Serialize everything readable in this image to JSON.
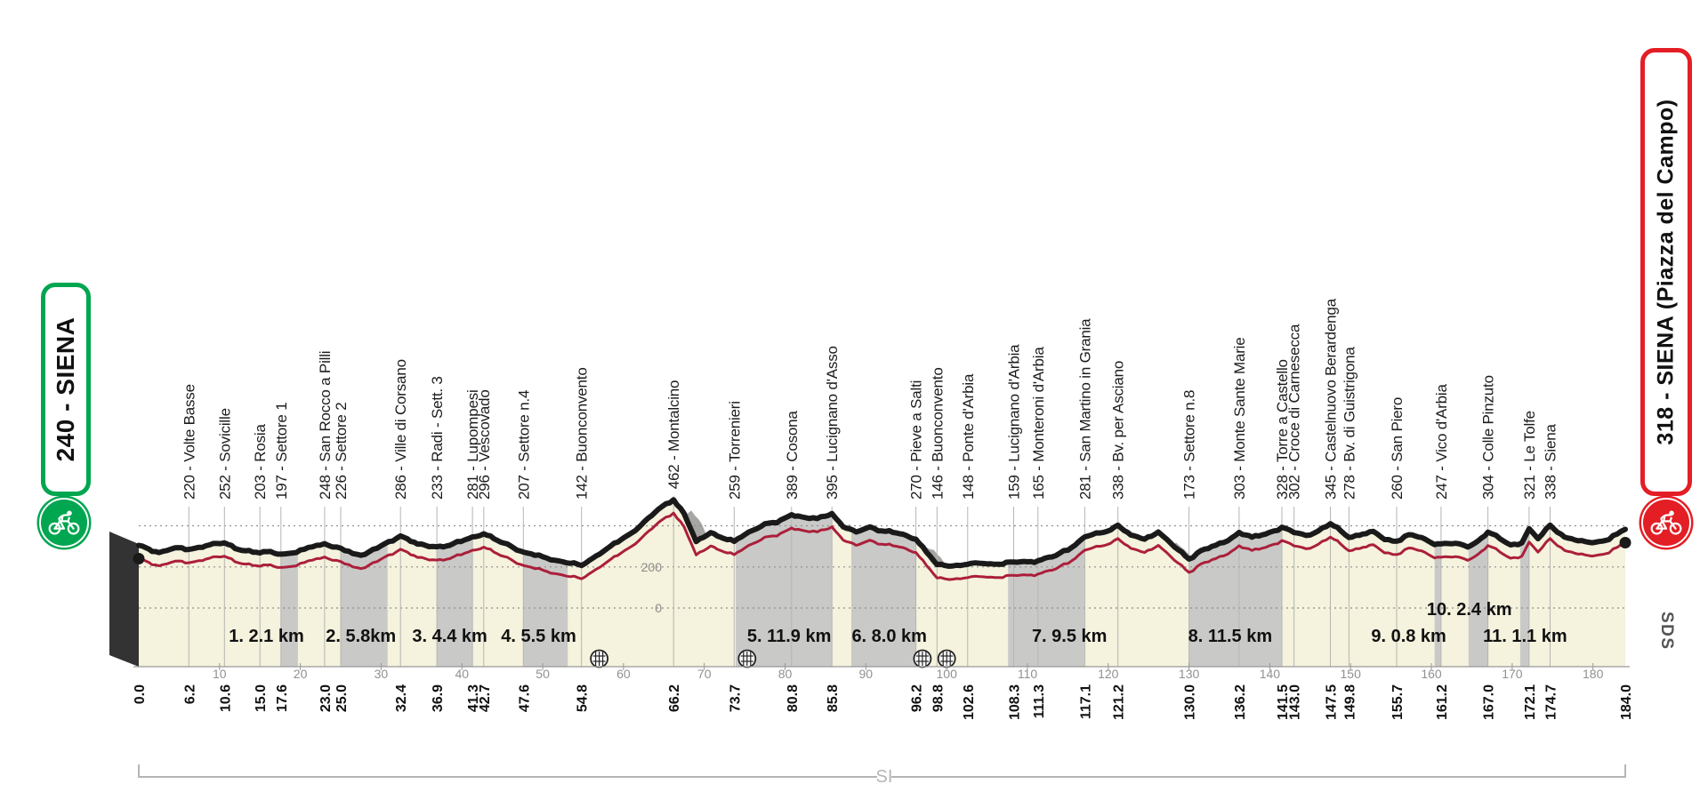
{
  "start_badge": {
    "label": "240 - SIENA",
    "accent": "#00a650",
    "icon": "cyclist-icon"
  },
  "finish_badge": {
    "label": "318 - SIENA (Piazza del Campo)",
    "accent": "#e31e25",
    "icon": "cyclist-icon"
  },
  "footer": {
    "bracket_label": "SI",
    "logo_text": "SDS"
  },
  "colors": {
    "area_fill": "#f5f2dd",
    "sector_fill": "#c9c9c7",
    "shadow_fill": "#a5a5a3",
    "slab_fill": "#333333",
    "skyline": "#1a1a1a",
    "route_line": "#ab1f3a",
    "axis_gray": "#919191",
    "leader_gray": "#b5b5b3",
    "bracket_gray": "#b5b5b5"
  },
  "chart_data": {
    "type": "area",
    "x_unit": "km",
    "y_unit": "m",
    "x_range": [
      0,
      184
    ],
    "x_axis_ticks": [
      10,
      20,
      30,
      40,
      50,
      60,
      70,
      80,
      90,
      100,
      110,
      120,
      130,
      140,
      150,
      160,
      170,
      180
    ],
    "y_gridlines": [
      {
        "value": 0,
        "label": "0"
      },
      {
        "value": 200,
        "label": "200"
      },
      {
        "value": 400,
        "label": ""
      }
    ],
    "start": {
      "km": 0.0,
      "km_label": "0.0",
      "elevation": 240
    },
    "finish": {
      "km": 184.0,
      "km_label": "184.0",
      "elevation": 318
    },
    "waypoints": [
      {
        "km": 6.2,
        "km_label": "6.2",
        "elevation": 220,
        "label": "220 - Volte Basse"
      },
      {
        "km": 10.6,
        "km_label": "10.6",
        "elevation": 252,
        "label": "252 - Sovicille"
      },
      {
        "km": 15.0,
        "km_label": "15.0",
        "elevation": 203,
        "label": "203 - Rosia"
      },
      {
        "km": 17.6,
        "km_label": "17.6",
        "elevation": 197,
        "label": "197 - Settore 1"
      },
      {
        "km": 23.0,
        "km_label": "23.0",
        "elevation": 248,
        "label": "248 - San Rocco a Pilli"
      },
      {
        "km": 25.0,
        "km_label": "25.0",
        "elevation": 226,
        "label": "226 - Settore 2"
      },
      {
        "km": 32.4,
        "km_label": "32.4",
        "elevation": 286,
        "label": "286 - Ville di Corsano"
      },
      {
        "km": 36.9,
        "km_label": "36.9",
        "elevation": 233,
        "label": "233 - Radi - Sett. 3"
      },
      {
        "km": 41.3,
        "km_label": "41.3",
        "elevation": 281,
        "label": "281 - Lupompesi"
      },
      {
        "km": 42.7,
        "km_label": "42.7",
        "elevation": 296,
        "label": "296 - Vescovado"
      },
      {
        "km": 47.6,
        "km_label": "47.6",
        "elevation": 207,
        "label": "207 - Settore n.4"
      },
      {
        "km": 54.8,
        "km_label": "54.8",
        "elevation": 142,
        "label": "142 - Buonconvento"
      },
      {
        "km": 66.2,
        "km_label": "66.2",
        "elevation": 462,
        "label": "462 - Montalcino"
      },
      {
        "km": 73.7,
        "km_label": "73.7",
        "elevation": 259,
        "label": "259 - Torrenieri"
      },
      {
        "km": 80.8,
        "km_label": "80.8",
        "elevation": 389,
        "label": "389 - Cosona"
      },
      {
        "km": 85.8,
        "km_label": "85.8",
        "elevation": 395,
        "label": "395 - Lucignano d'Asso"
      },
      {
        "km": 96.2,
        "km_label": "96.2",
        "elevation": 270,
        "label": "270 - Pieve a Salti"
      },
      {
        "km": 98.8,
        "km_label": "98.8",
        "elevation": 146,
        "label": "146 - Buonconvento"
      },
      {
        "km": 102.6,
        "km_label": "102.6",
        "elevation": 148,
        "label": "148 - Ponte d'Arbia"
      },
      {
        "km": 108.3,
        "km_label": "108.3",
        "elevation": 159,
        "label": "159 - Lucignano d'Arbia"
      },
      {
        "km": 111.3,
        "km_label": "111.3",
        "elevation": 165,
        "label": "165 - Monteroni d'Arbia"
      },
      {
        "km": 117.1,
        "km_label": "117.1",
        "elevation": 281,
        "label": "281 - San Martino in Grania"
      },
      {
        "km": 121.2,
        "km_label": "121.2",
        "elevation": 338,
        "label": "338 - Bv. per Asciano"
      },
      {
        "km": 130.0,
        "km_label": "130.0",
        "elevation": 173,
        "label": "173 - Settore n.8"
      },
      {
        "km": 136.2,
        "km_label": "136.2",
        "elevation": 303,
        "label": "303 - Monte Sante Marie"
      },
      {
        "km": 141.5,
        "km_label": "141.5",
        "elevation": 328,
        "label": "328 - Torre a Castello"
      },
      {
        "km": 143.0,
        "km_label": "143.0",
        "elevation": 302,
        "label": "302 - Croce di Carnesecca"
      },
      {
        "km": 147.5,
        "km_label": "147.5",
        "elevation": 345,
        "label": "345 - Castelnuovo Berardenga"
      },
      {
        "km": 149.8,
        "km_label": "149.8",
        "elevation": 278,
        "label": "278 - Bv. di Guistrigona"
      },
      {
        "km": 155.7,
        "km_label": "155.7",
        "elevation": 260,
        "label": "260 - San Piero"
      },
      {
        "km": 161.2,
        "km_label": "161.2",
        "elevation": 247,
        "label": "247 - Vico d'Arbia"
      },
      {
        "km": 167.0,
        "km_label": "167.0",
        "elevation": 304,
        "label": "304 - Colle Pinzuto"
      },
      {
        "km": 172.1,
        "km_label": "172.1",
        "elevation": 321,
        "label": "321 - Le Tolfe"
      },
      {
        "km": 174.7,
        "km_label": "174.7",
        "elevation": 338,
        "label": "338 - Siena"
      }
    ],
    "shape_points": [
      [
        2.5,
        205
      ],
      [
        4.5,
        228
      ],
      [
        8.3,
        238
      ],
      [
        12.8,
        215
      ],
      [
        16.3,
        210
      ],
      [
        19.5,
        205
      ],
      [
        21,
        230
      ],
      [
        24,
        232
      ],
      [
        26.5,
        200
      ],
      [
        28,
        196
      ],
      [
        30,
        238
      ],
      [
        34.5,
        246
      ],
      [
        38.5,
        240
      ],
      [
        44.8,
        255
      ],
      [
        46,
        238
      ],
      [
        50.5,
        178
      ],
      [
        52.5,
        160
      ],
      [
        58,
        225
      ],
      [
        61,
        300
      ],
      [
        63.5,
        385
      ],
      [
        64.8,
        430
      ],
      [
        67.5,
        395
      ],
      [
        69,
        258
      ],
      [
        70.8,
        302
      ],
      [
        72,
        280
      ],
      [
        75.5,
        305
      ],
      [
        77.5,
        345
      ],
      [
        79,
        350
      ],
      [
        82.5,
        375
      ],
      [
        84,
        370
      ],
      [
        87.2,
        330
      ],
      [
        88.8,
        305
      ],
      [
        90.5,
        330
      ],
      [
        92,
        310
      ],
      [
        93.8,
        300
      ],
      [
        95,
        288
      ],
      [
        100.8,
        140
      ],
      [
        104.5,
        152
      ],
      [
        106,
        148
      ],
      [
        110,
        160
      ],
      [
        113.5,
        190
      ],
      [
        115.5,
        230
      ],
      [
        119,
        300
      ],
      [
        120.3,
        315
      ],
      [
        122.8,
        290
      ],
      [
        124.5,
        270
      ],
      [
        126.2,
        305
      ],
      [
        128.2,
        232
      ],
      [
        131.5,
        215
      ],
      [
        133.3,
        240
      ],
      [
        134.8,
        262
      ],
      [
        137.8,
        280
      ],
      [
        139.5,
        295
      ],
      [
        140.5,
        310
      ],
      [
        144.5,
        288
      ],
      [
        146,
        310
      ],
      [
        148.8,
        310
      ],
      [
        151.5,
        295
      ],
      [
        152.8,
        308
      ],
      [
        154.2,
        268
      ],
      [
        157.2,
        292
      ],
      [
        158.8,
        278
      ],
      [
        160,
        252
      ],
      [
        163,
        250
      ],
      [
        164.5,
        232
      ],
      [
        165.8,
        262
      ],
      [
        168.5,
        272
      ],
      [
        169.8,
        242
      ],
      [
        171.2,
        252
      ],
      [
        173.2,
        272
      ],
      [
        176.5,
        280
      ],
      [
        178.2,
        262
      ],
      [
        180.3,
        255
      ],
      [
        182,
        268
      ],
      [
        183,
        295
      ]
    ],
    "gravel_sectors": [
      {
        "number": 1,
        "label": "1. 2.1 km",
        "from_km": 17.6,
        "to_km": 19.7,
        "label_km": 15.8,
        "raised": false
      },
      {
        "number": 2,
        "label": "2. 5.8km",
        "from_km": 25.0,
        "to_km": 30.8,
        "label_km": 27.5,
        "raised": false
      },
      {
        "number": 3,
        "label": "3. 4.4 km",
        "from_km": 36.9,
        "to_km": 41.3,
        "label_km": 38.5,
        "raised": false
      },
      {
        "number": 4,
        "label": "4. 5.5 km",
        "from_km": 47.6,
        "to_km": 53.1,
        "label_km": 49.5,
        "raised": false
      },
      {
        "number": 5,
        "label": "5. 11.9 km",
        "from_km": 73.9,
        "to_km": 85.8,
        "label_km": 80.5,
        "raised": false
      },
      {
        "number": 6,
        "label": "6. 8.0 km",
        "from_km": 88.2,
        "to_km": 96.2,
        "label_km": 92.9,
        "raised": false
      },
      {
        "number": 7,
        "label": "7. 9.5 km",
        "from_km": 107.6,
        "to_km": 117.1,
        "label_km": 115.2,
        "raised": false
      },
      {
        "number": 8,
        "label": "8. 11.5 km",
        "from_km": 130.0,
        "to_km": 141.5,
        "label_km": 135.1,
        "raised": false
      },
      {
        "number": 9,
        "label": "9. 0.8 km",
        "from_km": 160.4,
        "to_km": 161.2,
        "label_km": 157.2,
        "raised": false
      },
      {
        "number": 10,
        "label": "10. 2.4 km",
        "from_km": 164.6,
        "to_km": 167.0,
        "label_km": 164.7,
        "raised": true
      },
      {
        "number": 11,
        "label": "11. 1.1 km",
        "from_km": 171.0,
        "to_km": 172.1,
        "label_km": 171.6,
        "raised": false
      }
    ],
    "level_crossings_km": [
      57,
      75.3,
      97,
      100
    ]
  }
}
